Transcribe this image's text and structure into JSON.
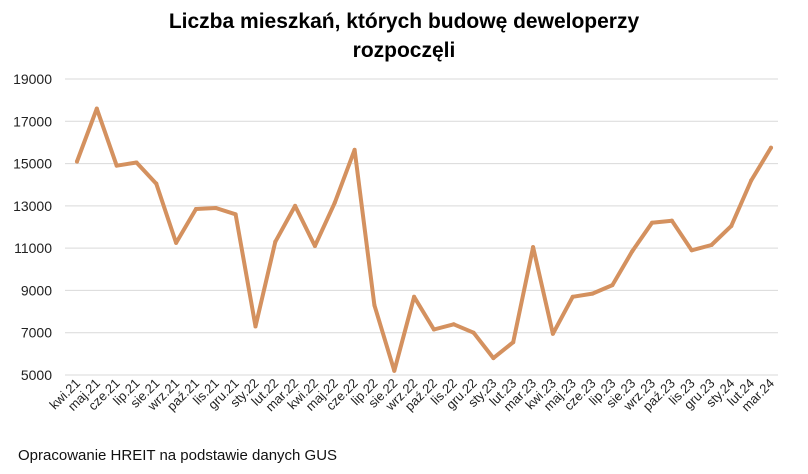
{
  "chart_data": {
    "type": "line",
    "title_line1": "Liczba mieszkań, których budowę deweloperzy",
    "title_line2": "rozpoczęli",
    "xlabel": "",
    "ylabel": "",
    "ylim": [
      5000,
      19000
    ],
    "yticks": [
      "5000",
      "7000",
      "9000",
      "11000",
      "13000",
      "15000",
      "17000",
      "19000"
    ],
    "grid": true,
    "line_color": "#D4915F",
    "categories": [
      "kwi.21",
      "maj.21",
      "cze.21",
      "lip.21",
      "sie.21",
      "wrz.21",
      "paź.21",
      "lis.21",
      "gru.21",
      "sty.22",
      "lut.22",
      "mar.22",
      "kwi.22",
      "maj.22",
      "cze.22",
      "lip.22",
      "sie.22",
      "wrz.22",
      "paź.22",
      "lis.22",
      "gru.22",
      "sty.23",
      "lut.23",
      "mar.23",
      "kwi.23",
      "maj.23",
      "cze.23",
      "lip.23",
      "sie.23",
      "wrz.23",
      "paź.23",
      "lis.23",
      "gru.23",
      "sty.24",
      "lut.24",
      "mar.24"
    ],
    "values": [
      15100,
      17600,
      14900,
      15050,
      14050,
      11250,
      12850,
      12900,
      12600,
      7300,
      11300,
      13000,
      11100,
      13150,
      15650,
      8300,
      5200,
      8700,
      7150,
      7400,
      7000,
      5800,
      6550,
      11050,
      6950,
      8700,
      8850,
      9250,
      10850,
      12200,
      12300,
      10900,
      11150,
      12050,
      14200,
      15750
    ]
  },
  "footer": {
    "source": "Opracowanie HREIT na podstawie danych GUS"
  }
}
